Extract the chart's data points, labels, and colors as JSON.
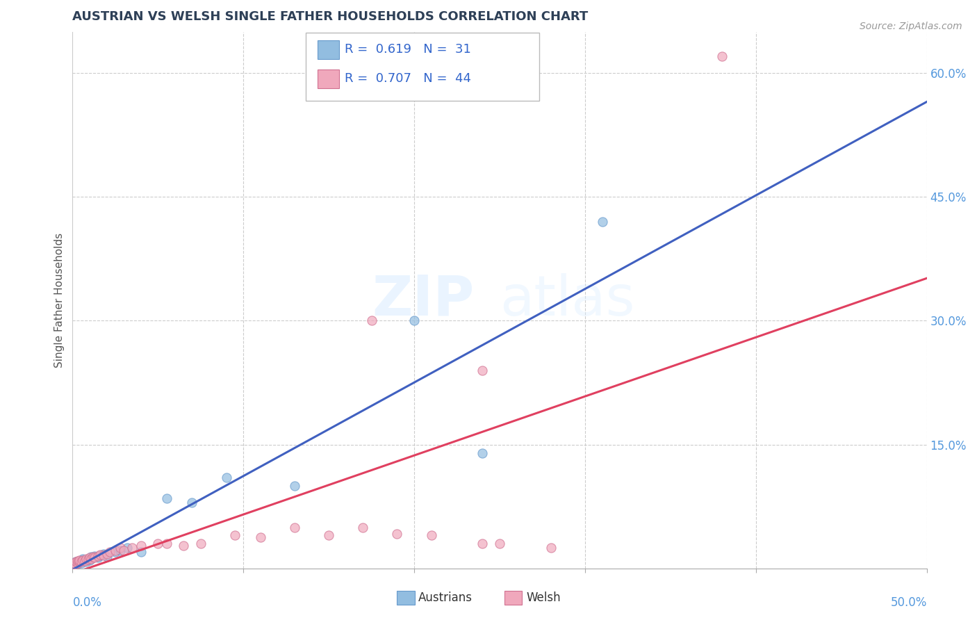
{
  "title": "AUSTRIAN VS WELSH SINGLE FATHER HOUSEHOLDS CORRELATION CHART",
  "source": "Source: ZipAtlas.com",
  "ylabel": "Single Father Households",
  "title_color": "#2E4057",
  "title_fontsize": 13,
  "background_color": "#ffffff",
  "watermark_zip": "ZIP",
  "watermark_atlas": "atlas",
  "blue_scatter_color": "#92bde0",
  "blue_scatter_edge": "#6699cc",
  "pink_scatter_color": "#f0a8bc",
  "pink_scatter_edge": "#d07090",
  "blue_line_color": "#4060c0",
  "pink_line_color": "#e04060",
  "grid_color": "#cccccc",
  "ytick_color": "#5599dd",
  "source_color": "#999999",
  "legend_text_color": "#3366cc",
  "bottom_text_color": "#333333",
  "r_blue": 0.619,
  "n_blue": 31,
  "r_pink": 0.707,
  "n_pink": 44,
  "xlim": [
    0.0,
    0.5
  ],
  "ylim": [
    0.0,
    0.65
  ],
  "austrian_points": [
    [
      0.001,
      0.005
    ],
    [
      0.002,
      0.006
    ],
    [
      0.002,
      0.008
    ],
    [
      0.003,
      0.006
    ],
    [
      0.004,
      0.009
    ],
    [
      0.004,
      0.008
    ],
    [
      0.005,
      0.01
    ],
    [
      0.005,
      0.007
    ],
    [
      0.006,
      0.012
    ],
    [
      0.007,
      0.01
    ],
    [
      0.008,
      0.008
    ],
    [
      0.009,
      0.012
    ],
    [
      0.01,
      0.01
    ],
    [
      0.011,
      0.014
    ],
    [
      0.012,
      0.013
    ],
    [
      0.013,
      0.015
    ],
    [
      0.015,
      0.013
    ],
    [
      0.016,
      0.016
    ],
    [
      0.018,
      0.018
    ],
    [
      0.02,
      0.014
    ],
    [
      0.025,
      0.02
    ],
    [
      0.028,
      0.022
    ],
    [
      0.032,
      0.025
    ],
    [
      0.04,
      0.02
    ],
    [
      0.055,
      0.085
    ],
    [
      0.07,
      0.08
    ],
    [
      0.09,
      0.11
    ],
    [
      0.13,
      0.1
    ],
    [
      0.2,
      0.3
    ],
    [
      0.24,
      0.14
    ],
    [
      0.31,
      0.42
    ]
  ],
  "welsh_points": [
    [
      0.001,
      0.005
    ],
    [
      0.001,
      0.007
    ],
    [
      0.002,
      0.005
    ],
    [
      0.002,
      0.008
    ],
    [
      0.003,
      0.007
    ],
    [
      0.003,
      0.009
    ],
    [
      0.004,
      0.008
    ],
    [
      0.004,
      0.01
    ],
    [
      0.005,
      0.008
    ],
    [
      0.006,
      0.01
    ],
    [
      0.007,
      0.009
    ],
    [
      0.008,
      0.012
    ],
    [
      0.009,
      0.011
    ],
    [
      0.01,
      0.013
    ],
    [
      0.011,
      0.012
    ],
    [
      0.012,
      0.014
    ],
    [
      0.013,
      0.013
    ],
    [
      0.015,
      0.015
    ],
    [
      0.016,
      0.017
    ],
    [
      0.018,
      0.016
    ],
    [
      0.02,
      0.018
    ],
    [
      0.022,
      0.02
    ],
    [
      0.025,
      0.022
    ],
    [
      0.028,
      0.025
    ],
    [
      0.03,
      0.022
    ],
    [
      0.035,
      0.025
    ],
    [
      0.04,
      0.028
    ],
    [
      0.05,
      0.03
    ],
    [
      0.055,
      0.03
    ],
    [
      0.065,
      0.028
    ],
    [
      0.075,
      0.03
    ],
    [
      0.095,
      0.04
    ],
    [
      0.11,
      0.038
    ],
    [
      0.13,
      0.05
    ],
    [
      0.15,
      0.04
    ],
    [
      0.17,
      0.05
    ],
    [
      0.19,
      0.042
    ],
    [
      0.21,
      0.04
    ],
    [
      0.24,
      0.03
    ],
    [
      0.25,
      0.03
    ],
    [
      0.175,
      0.3
    ],
    [
      0.24,
      0.24
    ],
    [
      0.28,
      0.025
    ],
    [
      0.38,
      0.62
    ]
  ]
}
